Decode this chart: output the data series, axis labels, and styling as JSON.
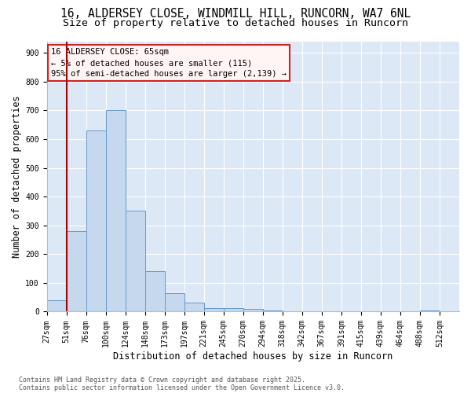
{
  "title_line1": "16, ALDERSEY CLOSE, WINDMILL HILL, RUNCORN, WA7 6NL",
  "title_line2": "Size of property relative to detached houses in Runcorn",
  "xlabel": "Distribution of detached houses by size in Runcorn",
  "ylabel": "Number of detached properties",
  "bin_edges": [
    "27sqm",
    "51sqm",
    "76sqm",
    "100sqm",
    "124sqm",
    "148sqm",
    "173sqm",
    "197sqm",
    "221sqm",
    "245sqm",
    "270sqm",
    "294sqm",
    "318sqm",
    "342sqm",
    "367sqm",
    "391sqm",
    "415sqm",
    "439sqm",
    "464sqm",
    "488sqm",
    "512sqm"
  ],
  "bin_values": [
    40,
    280,
    630,
    700,
    350,
    140,
    65,
    30,
    13,
    12,
    10,
    5,
    0,
    0,
    0,
    0,
    0,
    0,
    0,
    5
  ],
  "bar_color": "#c5d8ee",
  "bar_edge_color": "#6699cc",
  "vline_x": 1,
  "vline_color": "#aa0000",
  "annotation_text": "16 ALDERSEY CLOSE: 65sqm\n← 5% of detached houses are smaller (115)\n95% of semi-detached houses are larger (2,139) →",
  "annotation_box_facecolor": "#fff5f5",
  "annotation_box_edgecolor": "#cc2222",
  "ylim_max": 940,
  "yticks": [
    0,
    100,
    200,
    300,
    400,
    500,
    600,
    700,
    800,
    900
  ],
  "bg_color": "#dce8f5",
  "grid_color": "#ffffff",
  "footer_line1": "Contains HM Land Registry data © Crown copyright and database right 2025.",
  "footer_line2": "Contains public sector information licensed under the Open Government Licence v3.0.",
  "title_fontsize": 10.5,
  "subtitle_fontsize": 9.5,
  "ylabel_fontsize": 8.5,
  "xlabel_fontsize": 8.5,
  "tick_fontsize": 7,
  "ann_fontsize": 7.5,
  "footer_fontsize": 6
}
